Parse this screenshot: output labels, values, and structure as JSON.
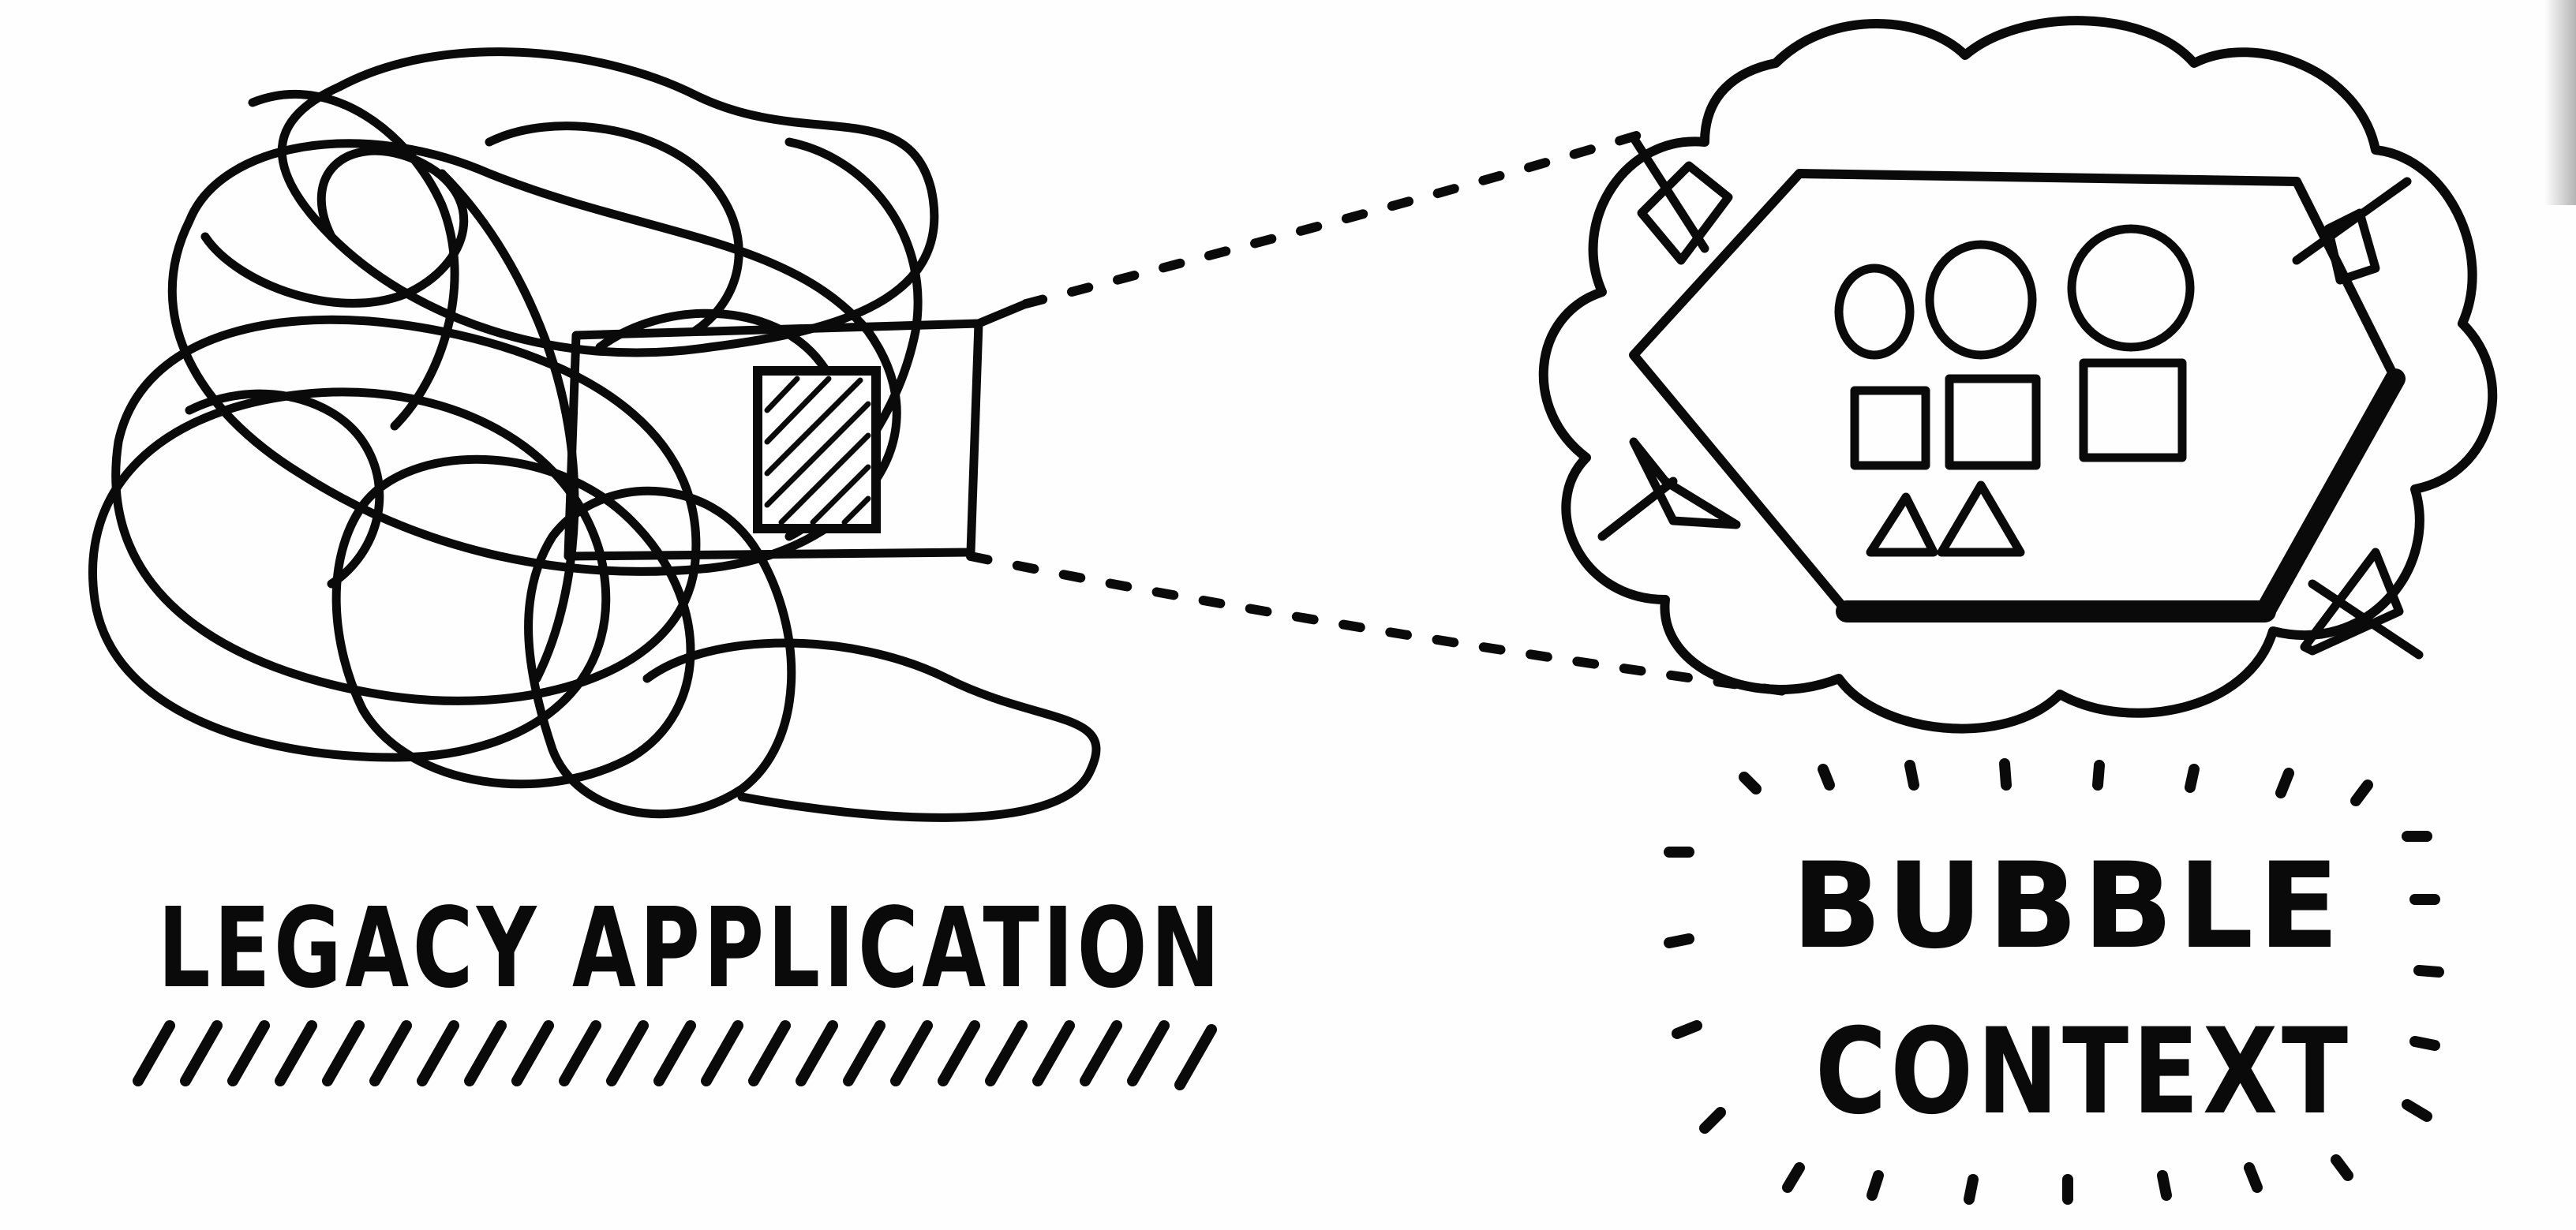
{
  "diagram": {
    "legacy": {
      "label": "LEGACY APPLICATION"
    },
    "bubble": {
      "label_line1": "BUBBLE",
      "label_line2": "CONTEXT"
    }
  }
}
